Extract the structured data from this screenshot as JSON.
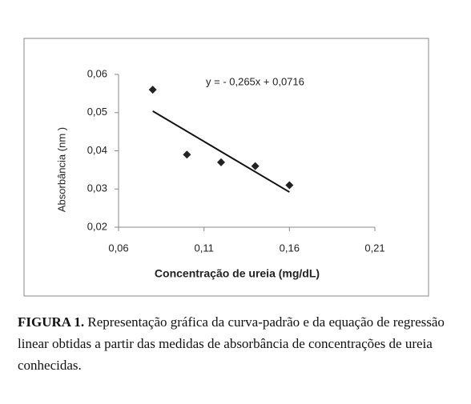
{
  "chart_data": {
    "type": "scatter",
    "x": [
      0.08,
      0.1,
      0.12,
      0.14,
      0.16
    ],
    "values": [
      0.056,
      0.039,
      0.037,
      0.036,
      0.031
    ],
    "color": "#222222",
    "xlim": [
      0.06,
      0.21
    ],
    "ylim": [
      0.02,
      0.06
    ],
    "xticks": [
      {
        "value": 0.06,
        "label": "0,06"
      },
      {
        "value": 0.11,
        "label": "0,11"
      },
      {
        "value": 0.16,
        "label": "0,16"
      },
      {
        "value": 0.21,
        "label": "0,21"
      }
    ],
    "yticks": [
      {
        "value": 0.02,
        "label": "0,02"
      },
      {
        "value": 0.03,
        "label": "0,03"
      },
      {
        "value": 0.04,
        "label": "0,04"
      },
      {
        "value": 0.05,
        "label": "0,05"
      },
      {
        "value": 0.06,
        "label": "0,06"
      }
    ],
    "x_label": "Concentração de ureia (mg/dL)",
    "y_label": "Absorbância (nm    )",
    "trendline": {
      "slope": -0.265,
      "intercept": 0.0716,
      "equation": "y = - 0,265x + 0,0716",
      "color": "#111111"
    },
    "grid": false
  },
  "caption": {
    "label": "FIGURA 1.",
    "text": "Representação gráfica da curva-padrão e da equação de regressão linear obtidas a partir das medidas de absorbância de concentrações de ureia conhecidas."
  }
}
